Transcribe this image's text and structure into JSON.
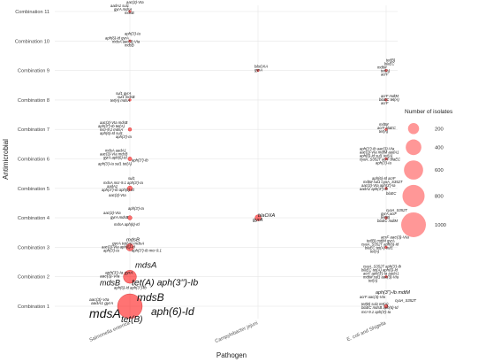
{
  "chart_data": {
    "type": "scatter",
    "xlabel": "Pathogen",
    "ylabel": "Antimicrobial",
    "x_categories": [
      "Salmonella enterica",
      "Campylobacter jejuni",
      "E. coli and Shigella"
    ],
    "y_categories": [
      "Combination 1",
      "Combination 2",
      "Combination 3",
      "Combination 4",
      "Combination 5",
      "Combination 6",
      "Combination 7",
      "Combination 8",
      "Combination 9",
      "Combination 10",
      "Combination 11"
    ],
    "size_legend": {
      "title": "Number of isolates",
      "values": [
        200,
        400,
        600,
        800,
        1000
      ],
      "position": "right"
    },
    "points": [
      {
        "x": "Salmonella enterica",
        "y": "Combination 11",
        "n": 3
      },
      {
        "x": "Salmonella enterica",
        "y": "Combination 10",
        "n": 3
      },
      {
        "x": "Salmonella enterica",
        "y": "Combination 8",
        "n": 3
      },
      {
        "x": "Salmonella enterica",
        "y": "Combination 7",
        "n": 20
      },
      {
        "x": "Salmonella enterica",
        "y": "Combination 6",
        "n": 25
      },
      {
        "x": "Salmonella enterica",
        "y": "Combination 5",
        "n": 40
      },
      {
        "x": "Salmonella enterica",
        "y": "Combination 4",
        "n": 30
      },
      {
        "x": "Salmonella enterica",
        "y": "Combination 3",
        "n": 90
      },
      {
        "x": "Salmonella enterica",
        "y": "Combination 2",
        "n": 280
      },
      {
        "x": "Salmonella enterica",
        "y": "Combination 1",
        "n": 1000
      },
      {
        "x": "Campylobacter jejuni",
        "y": "Combination 9",
        "n": 3
      },
      {
        "x": "Campylobacter jejuni",
        "y": "Combination 4",
        "n": 60
      },
      {
        "x": "E. coli and Shigella",
        "y": "Combination 9",
        "n": 3
      },
      {
        "x": "E. coli and Shigella",
        "y": "Combination 8",
        "n": 3
      },
      {
        "x": "E. coli and Shigella",
        "y": "Combination 7",
        "n": 3
      },
      {
        "x": "E. coli and Shigella",
        "y": "Combination 6",
        "n": 5
      },
      {
        "x": "E. coli and Shigella",
        "y": "Combination 5",
        "n": 5
      },
      {
        "x": "E. coli and Shigella",
        "y": "Combination 4",
        "n": 3
      },
      {
        "x": "E. coli and Shigella",
        "y": "Combination 3",
        "n": 5
      },
      {
        "x": "E. coli and Shigella",
        "y": "Combination 2",
        "n": 5
      },
      {
        "x": "E. coli and Shigella",
        "y": "Combination 1",
        "n": 20
      }
    ],
    "gene_labels": [
      {
        "x": "Salmonella enterica",
        "y": "Combination 11",
        "text": "aac(3)-VIa",
        "dx": -4,
        "dy": -9,
        "size": 4.2
      },
      {
        "x": "Salmonella enterica",
        "y": "Combination 11",
        "text": "aadA1 sul1",
        "dx": -22,
        "dy": -5,
        "size": 4.2
      },
      {
        "x": "Salmonella enterica",
        "y": "Combination 11",
        "text": "gyrA  mdsA",
        "dx": -18,
        "dy": -1,
        "size": 4.2
      },
      {
        "x": "Salmonella enterica",
        "y": "Combination 11",
        "text": "mdsB",
        "dx": -6,
        "dy": 3,
        "size": 4.2
      },
      {
        "x": "Salmonella enterica",
        "y": "Combination 10",
        "text": "aph(3')-Ia",
        "dx": -6,
        "dy": -7,
        "size": 4.2
      },
      {
        "x": "Salmonella enterica",
        "y": "Combination 10",
        "text": "aph(6)-Id gyrA",
        "dx": -28,
        "dy": -2,
        "size": 4.2
      },
      {
        "x": "Salmonella enterica",
        "y": "Combination 10",
        "text": "mdsA  aac(3)-VIa",
        "dx": -20,
        "dy": 2,
        "size": 4.2
      },
      {
        "x": "Salmonella enterica",
        "y": "Combination 10",
        "text": "mdsB",
        "dx": -6,
        "dy": 6,
        "size": 4.2
      },
      {
        "x": "Salmonella enterica",
        "y": "Combination 8",
        "text": "sul1 gyrA",
        "dx": -16,
        "dy": -6,
        "size": 4.2
      },
      {
        "x": "Salmonella enterica",
        "y": "Combination 8",
        "text": "sul1 mdsB",
        "dx": -14,
        "dy": -2,
        "size": 4.2
      },
      {
        "x": "Salmonella enterica",
        "y": "Combination 8",
        "text": "tet(A) mdsA",
        "dx": -22,
        "dy": 2,
        "size": 4.2
      },
      {
        "x": "Salmonella enterica",
        "y": "Combination 7",
        "text": "aac(3)-VIa  mdsB",
        "dx": -34,
        "dy": -6,
        "size": 4.2
      },
      {
        "x": "Salmonella enterica",
        "y": "Combination 7",
        "text": "aph(3'')-Ib  tet(A)",
        "dx": -36,
        "dy": -2,
        "size": 4.2
      },
      {
        "x": "Salmonella enterica",
        "y": "Combination 7",
        "text": "mcr-9.1  mdsA",
        "dx": -34,
        "dy": 2,
        "size": 4.2
      },
      {
        "x": "Salmonella enterica",
        "y": "Combination 7",
        "text": "aph(6)-Id  sul1",
        "dx": -34,
        "dy": 6,
        "size": 4.2
      },
      {
        "x": "Salmonella enterica",
        "y": "Combination 7",
        "text": "aph(3')-Ia",
        "dx": -16,
        "dy": 10,
        "size": 4.2
      },
      {
        "x": "Salmonella enterica",
        "y": "Combination 6",
        "text": "mdsA  aadA1",
        "dx": -28,
        "dy": -8,
        "size": 4.2
      },
      {
        "x": "Salmonella enterica",
        "y": "Combination 6",
        "text": "aac(3)-VIa mdsB",
        "dx": -34,
        "dy": -4,
        "size": 4.2
      },
      {
        "x": "Salmonella enterica",
        "y": "Combination 6",
        "text": "gyrA  aph(6)-Id",
        "dx": -30,
        "dy": 0,
        "size": 4.2
      },
      {
        "x": "Salmonella enterica",
        "y": "Combination 6",
        "text": "aph(3'')-Ib",
        "dx": 2,
        "dy": 3,
        "size": 4.2
      },
      {
        "x": "Salmonella enterica",
        "y": "Combination 6",
        "text": "aph(3')-Ia  sul1  tet(A)",
        "dx": -36,
        "dy": 7,
        "size": 4.2
      },
      {
        "x": "Salmonella enterica",
        "y": "Combination 5",
        "text": "sul1",
        "dx": -2,
        "dy": -10,
        "size": 4.2
      },
      {
        "x": "Salmonella enterica",
        "y": "Combination 5",
        "text": "mdsA  mcr-9.1  aph(3')-Ia",
        "dx": -30,
        "dy": -5,
        "size": 4.2
      },
      {
        "x": "Salmonella enterica",
        "y": "Combination 5",
        "text": "aadA1",
        "dx": -26,
        "dy": -1,
        "size": 4.2
      },
      {
        "x": "Salmonella enterica",
        "y": "Combination 5",
        "text": "aph(3'')-Ib  aph(6)-Id",
        "dx": -32,
        "dy": 3,
        "size": 4.2
      },
      {
        "x": "Salmonella enterica",
        "y": "Combination 5",
        "text": "aac(3)-VIa",
        "dx": -24,
        "dy": 9,
        "size": 4.2
      },
      {
        "x": "Salmonella enterica",
        "y": "Combination 4",
        "text": "aph(3')-Ia",
        "dx": -2,
        "dy": -9,
        "size": 4.2
      },
      {
        "x": "Salmonella enterica",
        "y": "Combination 4",
        "text": "aac(3)-VIa",
        "dx": -30,
        "dy": -4,
        "size": 4.2
      },
      {
        "x": "Salmonella enterica",
        "y": "Combination 4",
        "text": "gyrA  mdsB",
        "dx": -22,
        "dy": 1,
        "size": 4.2
      },
      {
        "x": "Salmonella enterica",
        "y": "Combination 4",
        "text": "mdsA  aph(6)-Id",
        "dx": -18,
        "dy": 9,
        "size": 4.2
      },
      {
        "x": "Salmonella enterica",
        "y": "Combination 3",
        "text": "mdsB",
        "dx": -4,
        "dy": -7,
        "size": 5.8
      },
      {
        "x": "Salmonella enterica",
        "y": "Combination 3",
        "text": "gyrA  tet(A)  mdsA",
        "dx": -20,
        "dy": -3,
        "size": 4.8
      },
      {
        "x": "Salmonella enterica",
        "y": "Combination 3",
        "text": "aac(3)-VIa  aph(6)-Id",
        "dx": -32,
        "dy": 1,
        "size": 4.2
      },
      {
        "x": "Salmonella enterica",
        "y": "Combination 3",
        "text": "aph(3')-Ia",
        "dx": -30,
        "dy": 5,
        "size": 4.2
      },
      {
        "x": "Salmonella enterica",
        "y": "Combination 3",
        "text": "aph(3'')-Ib  mcr-9.1",
        "dx": 2,
        "dy": 5,
        "size": 4.2
      },
      {
        "x": "Salmonella enterica",
        "y": "Combination 2",
        "text": "mdsA",
        "dx": 6,
        "dy": -10,
        "size": 9.5
      },
      {
        "x": "Salmonella enterica",
        "y": "Combination 2",
        "text": "aph(3')-Ia  gyrA",
        "dx": -28,
        "dy": -3,
        "size": 4.8
      },
      {
        "x": "Salmonella enterica",
        "y": "Combination 2",
        "text": "aac(3)-VIa",
        "dx": -34,
        "dy": 1,
        "size": 4.8
      },
      {
        "x": "Salmonella enterica",
        "y": "Combination 2",
        "text": "tet(A)  aph(3'')-Ib",
        "dx": 2,
        "dy": 10,
        "size": 10.5
      },
      {
        "x": "Salmonella enterica",
        "y": "Combination 2",
        "text": "mdsB",
        "dx": -34,
        "dy": 10,
        "size": 9
      },
      {
        "x": "Salmonella enterica",
        "y": "Combination 2",
        "text": "aph(6)-Id  aph(3'')-Ib",
        "dx": -18,
        "dy": 14,
        "size": 4.2
      },
      {
        "x": "Salmonella enterica",
        "y": "Combination 1",
        "text": "aac(3)-VIa",
        "dx": -46,
        "dy": -6,
        "size": 4.8
      },
      {
        "x": "Salmonella enterica",
        "y": "Combination 1",
        "text": "aadA1  gyrA",
        "dx": -44,
        "dy": -2,
        "size": 4.8
      },
      {
        "x": "Salmonella enterica",
        "y": "Combination 1",
        "text": "mdsB",
        "dx": 8,
        "dy": -6,
        "size": 12
      },
      {
        "x": "Salmonella enterica",
        "y": "Combination 1",
        "text": "aph(6)-Id",
        "dx": 24,
        "dy": 10,
        "size": 12
      },
      {
        "x": "Salmonella enterica",
        "y": "Combination 1",
        "text": "mdsA",
        "dx": -46,
        "dy": 13,
        "size": 14
      },
      {
        "x": "Salmonella enterica",
        "y": "Combination 1",
        "text": "tet(B)",
        "dx": -10,
        "dy": 18,
        "size": 10
      },
      {
        "x": "Campylobacter jejuni",
        "y": "Combination 9",
        "text": "blaOXA",
        "dx": -4,
        "dy": -3,
        "size": 4.4
      },
      {
        "x": "Campylobacter jejuni",
        "y": "Combination 9",
        "text": "gyrA",
        "dx": -4,
        "dy": 1,
        "size": 4.4
      },
      {
        "x": "Campylobacter jejuni",
        "y": "Combination 4",
        "text": "blaOXA",
        "dx": 0,
        "dy": -1,
        "size": 5.6
      },
      {
        "x": "Campylobacter jejuni",
        "y": "Combination 4",
        "text": "gyrA",
        "dx": -6,
        "dy": 4,
        "size": 5.6
      },
      {
        "x": "E. coli and Shigella",
        "y": "Combination 9",
        "text": "tet(B)",
        "dx": 0,
        "dy": -10,
        "size": 4.2
      },
      {
        "x": "E. coli and Shigella",
        "y": "Combination 9",
        "text": "blaEC",
        "dx": -2,
        "dy": -6,
        "size": 4.2
      },
      {
        "x": "E. coli and Shigella",
        "y": "Combination 9",
        "text": "mdtM",
        "dx": -10,
        "dy": -2,
        "size": 4.2
      },
      {
        "x": "E. coli and Shigella",
        "y": "Combination 9",
        "text": "tet(A)",
        "dx": -6,
        "dy": 2,
        "size": 4.2
      },
      {
        "x": "E. coli and Shigella",
        "y": "Combination 9",
        "text": "acrF",
        "dx": -6,
        "dy": 6,
        "size": 4.2
      },
      {
        "x": "E. coli and Shigella",
        "y": "Combination 8",
        "text": "acrF  mdtM",
        "dx": -6,
        "dy": -3,
        "size": 4.2
      },
      {
        "x": "E. coli and Shigella",
        "y": "Combination 8",
        "text": "blaEC  tet(A)",
        "dx": -8,
        "dy": 1,
        "size": 4.2
      },
      {
        "x": "E. coli and Shigella",
        "y": "Combination 8",
        "text": "acrF",
        "dx": -6,
        "dy": 5,
        "size": 4.2
      },
      {
        "x": "E. coli and Shigella",
        "y": "Combination 7",
        "text": "mdtM",
        "dx": -8,
        "dy": -4,
        "size": 4.2
      },
      {
        "x": "E. coli and Shigella",
        "y": "Combination 7",
        "text": "acrF  blaEC",
        "dx": -10,
        "dy": 0,
        "size": 4.2
      },
      {
        "x": "E. coli and Shigella",
        "y": "Combination 7",
        "text": "tet(A)",
        "dx": -8,
        "dy": 4,
        "size": 4.2
      },
      {
        "x": "E. coli and Shigella",
        "y": "Combination 6",
        "text": "aph(3'')-Ib  aac(3)-VIa",
        "dx": -30,
        "dy": -10,
        "size": 4.2
      },
      {
        "x": "E. coli and Shigella",
        "y": "Combination 6",
        "text": "aac(3)-VIa  mdtM  aadA1",
        "dx": -30,
        "dy": -6,
        "size": 4.2
      },
      {
        "x": "E. coli and Shigella",
        "y": "Combination 6",
        "text": "aph(6)-Id  sul1  tet(A)",
        "dx": -30,
        "dy": -2,
        "size": 4.2
      },
      {
        "x": "E. coli and Shigella",
        "y": "Combination 6",
        "text": "cyaA_S352T  acrF  blaEC",
        "dx": -30,
        "dy": 2,
        "size": 4.2
      },
      {
        "x": "E. coli and Shigella",
        "y": "Combination 6",
        "text": "aph(3')-Ia",
        "dx": -12,
        "dy": 6,
        "size": 4.2
      },
      {
        "x": "E. coli and Shigella",
        "y": "Combination 5",
        "text": "aph(6)-Id  acrF",
        "dx": -16,
        "dy": -10,
        "size": 4.2
      },
      {
        "x": "E. coli and Shigella",
        "y": "Combination 5",
        "text": "mdtM  sul1  cyaA_S352T",
        "dx": -26,
        "dy": -6,
        "size": 4.2
      },
      {
        "x": "E. coli and Shigella",
        "y": "Combination 5",
        "text": "aac(3)-VIa  aph(3')-Ia",
        "dx": -28,
        "dy": -2,
        "size": 4.2
      },
      {
        "x": "E. coli and Shigella",
        "y": "Combination 5",
        "text": "aadA1  aph(3'')-Ib",
        "dx": -30,
        "dy": 2,
        "size": 4.2
      },
      {
        "x": "E. coli and Shigella",
        "y": "Combination 5",
        "text": "blaEC",
        "dx": 0,
        "dy": 7,
        "size": 4.2
      },
      {
        "x": "E. coli and Shigella",
        "y": "Combination 4",
        "text": "cyaA_S352T",
        "dx": 0,
        "dy": -7,
        "size": 4.2
      },
      {
        "x": "E. coli and Shigella",
        "y": "Combination 4",
        "text": "gyrA  acrF",
        "dx": -6,
        "dy": -3,
        "size": 4.2
      },
      {
        "x": "E. coli and Shigella",
        "y": "Combination 4",
        "text": "tet(B)",
        "dx": -6,
        "dy": 1,
        "size": 4.2
      },
      {
        "x": "E. coli and Shigella",
        "y": "Combination 4",
        "text": "blaEC  mdtM",
        "dx": -10,
        "dy": 5,
        "size": 4.2
      },
      {
        "x": "E. coli and Shigella",
        "y": "Combination 3",
        "text": "acrF  aac(3)-VIa",
        "dx": -6,
        "dy": -10,
        "size": 4.6
      },
      {
        "x": "E. coli and Shigella",
        "y": "Combination 3",
        "text": "tet(B)  mdtM  gyrA",
        "dx": -22,
        "dy": -6,
        "size": 4.2
      },
      {
        "x": "E. coli and Shigella",
        "y": "Combination 3",
        "text": "cyaA_S352T  aph(6)-Id",
        "dx": -28,
        "dy": -2,
        "size": 4.2
      },
      {
        "x": "E. coli and Shigella",
        "y": "Combination 3",
        "text": "blaEC  tet(A)  sul1",
        "dx": -24,
        "dy": 2,
        "size": 4.2
      },
      {
        "x": "E. coli and Shigella",
        "y": "Combination 3",
        "text": "tet(A)",
        "dx": -18,
        "dy": 6,
        "size": 4.2
      },
      {
        "x": "E. coli and Shigella",
        "y": "Combination 2",
        "text": "cyaA_S352T  aph(3')-Ib",
        "dx": -26,
        "dy": -10,
        "size": 4.2
      },
      {
        "x": "E. coli and Shigella",
        "y": "Combination 2",
        "text": "blaEC  tet(A)  aph(6)-Id",
        "dx": -28,
        "dy": -6,
        "size": 4.2
      },
      {
        "x": "E. coli and Shigella",
        "y": "Combination 2",
        "text": "acrF  aph(3')-Ia  aadA1",
        "dx": -26,
        "dy": -2,
        "size": 4.2
      },
      {
        "x": "E. coli and Shigella",
        "y": "Combination 2",
        "text": "mdtM  sul1  aac(3)-VIa",
        "dx": -26,
        "dy": 2,
        "size": 4.2
      },
      {
        "x": "E. coli and Shigella",
        "y": "Combination 2",
        "text": "tet(A)",
        "dx": -20,
        "dy": 6,
        "size": 4.2
      },
      {
        "x": "E. coli and Shigella",
        "y": "Combination 1",
        "text": "aph(3'')-Ib  mdtM",
        "dx": -12,
        "dy": -14,
        "size": 5.4
      },
      {
        "x": "E. coli and Shigella",
        "y": "Combination 1",
        "text": "acrF  aac(3)-VIa",
        "dx": -30,
        "dy": -9,
        "size": 4.2
      },
      {
        "x": "E. coli and Shigella",
        "y": "Combination 1",
        "text": "cyaA_S352T",
        "dx": 10,
        "dy": -5,
        "size": 4.2
      },
      {
        "x": "E. coli and Shigella",
        "y": "Combination 1",
        "text": "tet(B)  sul1  tet(A)",
        "dx": -28,
        "dy": -1,
        "size": 4.2
      },
      {
        "x": "E. coli and Shigella",
        "y": "Combination 1",
        "text": "blaEC  mdsB  aph(6)-Id",
        "dx": -28,
        "dy": 3,
        "size": 4.2
      },
      {
        "x": "E. coli and Shigella",
        "y": "Combination 1",
        "text": "mcr-9.1  aph(3')-Ia",
        "dx": -28,
        "dy": 8,
        "size": 4.2
      }
    ]
  }
}
